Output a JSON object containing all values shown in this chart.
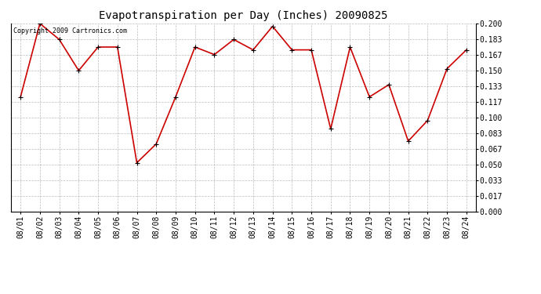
{
  "title": "Evapotranspiration per Day (Inches) 20090825",
  "copyright": "Copyright 2009 Cartronics.com",
  "dates": [
    "08/01",
    "08/02",
    "08/03",
    "08/04",
    "08/05",
    "08/06",
    "08/07",
    "08/08",
    "08/09",
    "08/10",
    "08/11",
    "08/12",
    "08/13",
    "08/14",
    "08/15",
    "08/16",
    "08/17",
    "08/18",
    "08/19",
    "08/20",
    "08/21",
    "08/22",
    "08/23",
    "08/24"
  ],
  "values": [
    0.122,
    0.2,
    0.183,
    0.15,
    0.175,
    0.175,
    0.052,
    0.072,
    0.122,
    0.175,
    0.167,
    0.183,
    0.172,
    0.197,
    0.172,
    0.172,
    0.088,
    0.175,
    0.122,
    0.135,
    0.075,
    0.097,
    0.152,
    0.172
  ],
  "line_color": "#cc0000",
  "marker": "+",
  "marker_size": 5,
  "ylim": [
    0.0,
    0.2
  ],
  "yticks": [
    0.0,
    0.017,
    0.033,
    0.05,
    0.067,
    0.083,
    0.1,
    0.117,
    0.133,
    0.15,
    0.167,
    0.183,
    0.2
  ],
  "background_color": "#ffffff",
  "grid_color": "#bbbbbb",
  "title_fontsize": 10,
  "copyright_fontsize": 6,
  "tick_fontsize": 7,
  "axis_label_color": "#000000",
  "linewidth": 1.2
}
